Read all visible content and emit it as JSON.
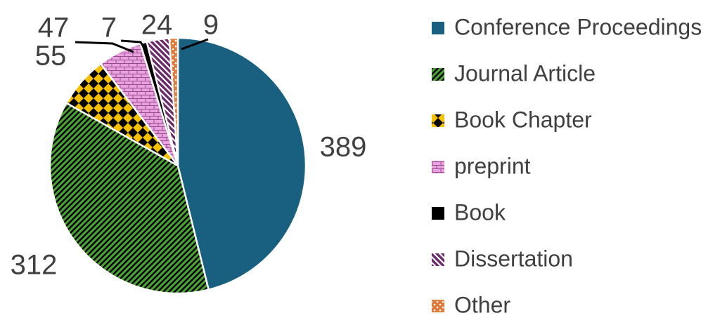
{
  "chart_data": {
    "type": "pie",
    "categories": [
      "Conference Proceedings",
      "Journal Article",
      "Book Chapter",
      "preprint",
      "Book",
      "Dissertation",
      "Other"
    ],
    "values": [
      389,
      312,
      55,
      47,
      7,
      24,
      9
    ],
    "colors": [
      "#185f80",
      "#4aa232",
      "#f6c000",
      "#e8a2de",
      "#000000",
      "#6b2a6a",
      "#e07a3a"
    ],
    "patterns": [
      "solid",
      "diagonal",
      "diamond",
      "brick",
      "solid",
      "reverse-diagonal",
      "dots"
    ],
    "start_angle": 0,
    "direction": "clockwise",
    "legend": "right"
  }
}
